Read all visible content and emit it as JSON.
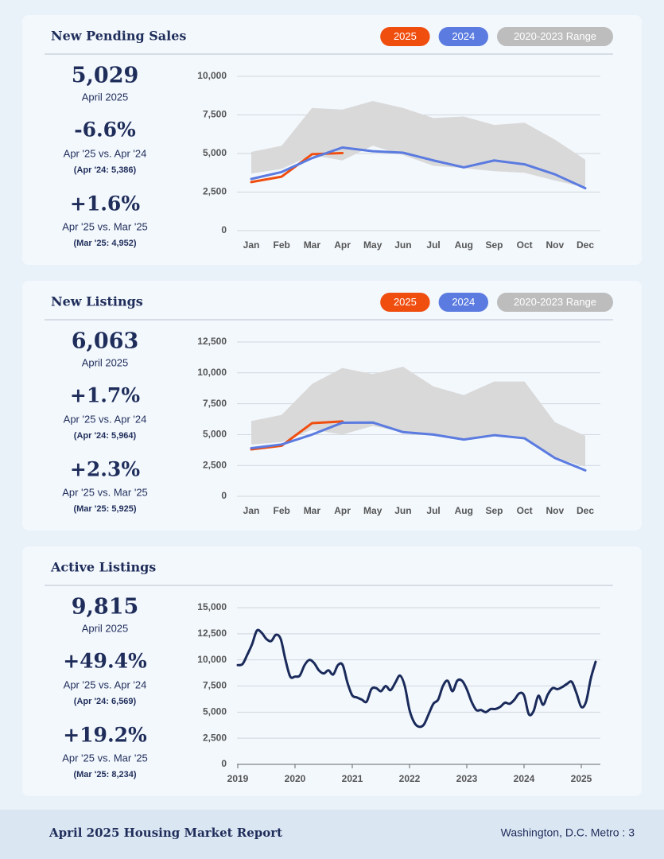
{
  "panels": [
    {
      "value": "5,029",
      "period": "April 2025",
      "changes": [
        {
          "pct": "-6.6%",
          "label": "Apr '25 vs. Apr '24",
          "ref": "(Apr '24: 5,386)"
        },
        {
          "pct": "+1.6%",
          "label": "Apr '25 vs. Mar '25",
          "ref": "(Mar '25: 4,952)"
        }
      ]
    },
    {
      "value": "6,063",
      "period": "April 2025",
      "changes": [
        {
          "pct": "+1.7%",
          "label": "Apr '25 vs. Apr '24",
          "ref": "(Apr '24: 5,964)"
        },
        {
          "pct": "+2.3%",
          "label": "Apr '25 vs. Mar '25",
          "ref": "(Mar '25: 5,925)"
        }
      ]
    },
    {
      "value": "9,815",
      "period": "April 2025",
      "changes": [
        {
          "pct": "+49.4%",
          "label": "Apr '25 vs. Apr '24",
          "ref": "(Apr '24: 6,569)"
        },
        {
          "pct": "+19.2%",
          "label": "Apr '25 vs. Mar '25",
          "ref": "(Mar '25: 8,234)"
        }
      ]
    }
  ],
  "chart_data": [
    {
      "type": "line",
      "title": "New Pending Sales",
      "categories": [
        "Jan",
        "Feb",
        "Mar",
        "Apr",
        "May",
        "Jun",
        "Jul",
        "Aug",
        "Sep",
        "Oct",
        "Nov",
        "Dec"
      ],
      "ylim": [
        0,
        10000
      ],
      "yticks": [
        0,
        {
          "value": 2500,
          "label": "2,500"
        },
        {
          "value": 5000,
          "label": "5,000"
        },
        {
          "value": 7500,
          "label": "7,500"
        },
        {
          "value": 10000,
          "label": "10,000"
        }
      ],
      "grid": true,
      "series": [
        {
          "name": "2025",
          "color": "#f04e0f",
          "values": [
            3150,
            3500,
            4952,
            5029,
            null,
            null,
            null,
            null,
            null,
            null,
            null,
            null
          ]
        },
        {
          "name": "2024",
          "color": "#5b7be0",
          "values": [
            3350,
            3800,
            4700,
            5386,
            5150,
            5050,
            4550,
            4100,
            4550,
            4300,
            3650,
            2750
          ]
        },
        {
          "name": "2020-2023 Range",
          "color": "#d9d9d9",
          "high": [
            5100,
            5500,
            7950,
            7850,
            8400,
            7950,
            7300,
            7400,
            6850,
            7000,
            5900,
            4600
          ],
          "low": [
            3700,
            4000,
            4900,
            4550,
            5500,
            4900,
            4200,
            4050,
            3850,
            3750,
            3250,
            2800
          ]
        }
      ]
    },
    {
      "type": "line",
      "title": "New Listings",
      "categories": [
        "Jan",
        "Feb",
        "Mar",
        "Apr",
        "May",
        "Jun",
        "Jul",
        "Aug",
        "Sep",
        "Oct",
        "Nov",
        "Dec"
      ],
      "ylim": [
        0,
        12500
      ],
      "yticks": [
        0,
        {
          "value": 2500,
          "label": "2,500"
        },
        {
          "value": 5000,
          "label": "5,000"
        },
        {
          "value": 7500,
          "label": "7,500"
        },
        {
          "value": 10000,
          "label": "10,000"
        },
        {
          "value": 12500,
          "label": "12,500"
        }
      ],
      "grid": true,
      "series": [
        {
          "name": "2025",
          "color": "#f04e0f",
          "values": [
            3800,
            4100,
            5925,
            6063,
            null,
            null,
            null,
            null,
            null,
            null,
            null,
            null
          ]
        },
        {
          "name": "2024",
          "color": "#5b7be0",
          "values": [
            3900,
            4200,
            5000,
            5964,
            5980,
            5200,
            5000,
            4600,
            4950,
            4700,
            3100,
            2100
          ]
        },
        {
          "name": "2020-2023 Range",
          "color": "#d9d9d9",
          "high": [
            6100,
            6600,
            9100,
            10400,
            9900,
            10500,
            8900,
            8200,
            9300,
            9300,
            6000,
            4900
          ],
          "low": [
            4200,
            4400,
            5400,
            5000,
            5700,
            5200,
            4900,
            4600,
            4950,
            4700,
            3100,
            2400
          ]
        }
      ]
    },
    {
      "type": "line",
      "title": "Active Listings",
      "categories": [
        "2019",
        null,
        null,
        null,
        null,
        null,
        null,
        null,
        null,
        null,
        null,
        null,
        "2020",
        null,
        null,
        null,
        null,
        null,
        null,
        null,
        null,
        null,
        null,
        null,
        "2021",
        null,
        null,
        null,
        null,
        null,
        null,
        null,
        null,
        null,
        null,
        null,
        "2022",
        null,
        null,
        null,
        null,
        null,
        null,
        null,
        null,
        null,
        null,
        null,
        "2023",
        null,
        null,
        null,
        null,
        null,
        null,
        null,
        null,
        null,
        null,
        null,
        "2024",
        null,
        null,
        null,
        null,
        null,
        null,
        null,
        null,
        null,
        null,
        null,
        "2025",
        null,
        null,
        null
      ],
      "ylim": [
        0,
        15000
      ],
      "yticks": [
        0,
        {
          "value": 2500,
          "label": "2,500"
        },
        {
          "value": 5000,
          "label": "5,000"
        },
        {
          "value": 7500,
          "label": "7,500"
        },
        {
          "value": 10000,
          "label": "10,000"
        },
        {
          "value": 12500,
          "label": "12,500"
        },
        {
          "value": 15000,
          "label": "15,000"
        }
      ],
      "grid": true,
      "series": [
        {
          "color": "#1a2a5a",
          "values": [
            9500,
            9600,
            10500,
            11500,
            12800,
            12600,
            12000,
            11800,
            12400,
            12000,
            10000,
            8400,
            8400,
            8500,
            9500,
            10000,
            9700,
            9000,
            8700,
            9000,
            8600,
            9500,
            9500,
            7800,
            6600,
            6400,
            6200,
            6000,
            7200,
            7300,
            7000,
            7500,
            7100,
            7800,
            8500,
            7500,
            5200,
            4000,
            3600,
            3800,
            4800,
            5800,
            6200,
            7500,
            8000,
            7000,
            8000,
            8000,
            7200,
            6000,
            5200,
            5200,
            5000,
            5300,
            5300,
            5500,
            5900,
            5800,
            6200,
            6800,
            6600,
            4800,
            5100,
            6569,
            5700,
            6700,
            7300,
            7200,
            7400,
            7700,
            7900,
            6800,
            5500,
            6000,
            8234,
            9815
          ]
        }
      ]
    }
  ],
  "footer": {
    "title": "April 2025 Housing Market Report",
    "location": "Washington, D.C. Metro  :  3"
  }
}
